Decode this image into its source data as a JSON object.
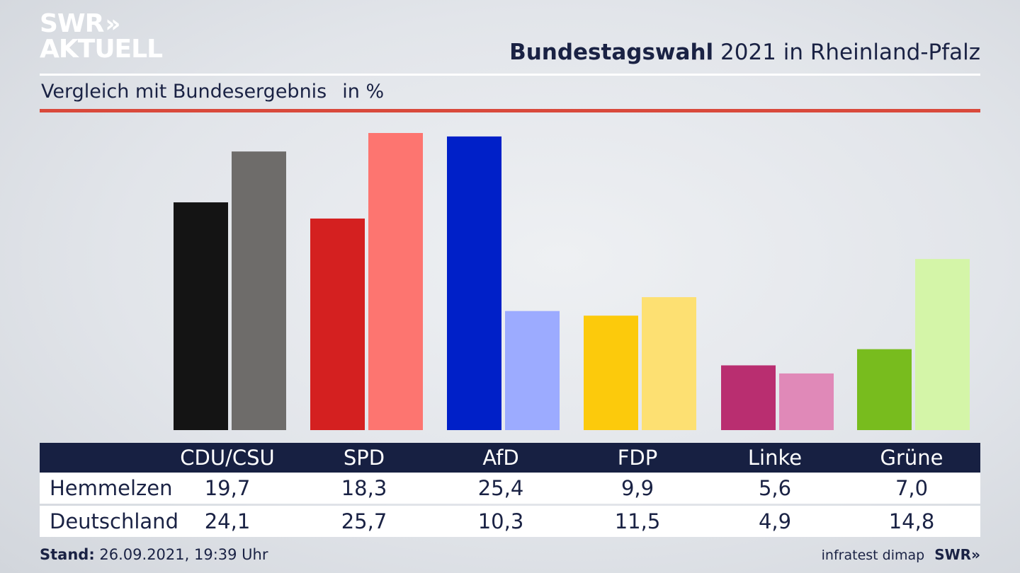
{
  "brand": {
    "logo_line1": "SWR",
    "logo_chevrons": "»",
    "logo_line2": "AKTUELL",
    "footer_logo": "SWR»"
  },
  "header": {
    "title_bold": "Bundestagswahl",
    "title_rest": " 2021 in Rheinland-Pfalz",
    "subtitle": "Vergleich mit Bundesergebnis",
    "unit": "in %"
  },
  "table": {
    "headers": [
      "CDU/CSU",
      "SPD",
      "AfD",
      "FDP",
      "Linke",
      "Grüne"
    ],
    "rows": [
      {
        "label": "Hemmelzen",
        "values": [
          "19,7",
          "18,3",
          "25,4",
          "9,9",
          "5,6",
          "7,0"
        ]
      },
      {
        "label": "Deutschland",
        "values": [
          "24,1",
          "25,7",
          "10,3",
          "11,5",
          "4,9",
          "14,8"
        ]
      }
    ]
  },
  "footer": {
    "stand_label": "Stand:",
    "stand_value": " 26.09.2021, 19:39 Uhr",
    "source": "infratest dimap"
  },
  "colors": {
    "local": [
      "#141414",
      "#d42020",
      "#0020c8",
      "#fcca0c",
      "#b92e70",
      "#78bc1e"
    ],
    "national": [
      "#6e6c6a",
      "#fd7570",
      "#9cabff",
      "#fde072",
      "#e089b8",
      "#d4f5a8"
    ],
    "header_bg": "#172042",
    "accent_rule": "#d9493b"
  },
  "chart_data": {
    "type": "bar",
    "categories": [
      "CDU/CSU",
      "SPD",
      "AfD",
      "FDP",
      "Linke",
      "Grüne"
    ],
    "series": [
      {
        "name": "Hemmelzen",
        "values": [
          19.7,
          18.3,
          25.4,
          9.9,
          5.6,
          7.0
        ]
      },
      {
        "name": "Deutschland",
        "values": [
          24.1,
          25.7,
          10.3,
          11.5,
          4.9,
          14.8
        ]
      }
    ],
    "title": "Bundestagswahl 2021 in Rheinland-Pfalz",
    "subtitle": "Vergleich mit Bundesergebnis",
    "ylabel": "in %",
    "ylim": [
      0,
      25.7
    ],
    "grid": false,
    "legend": "none"
  }
}
